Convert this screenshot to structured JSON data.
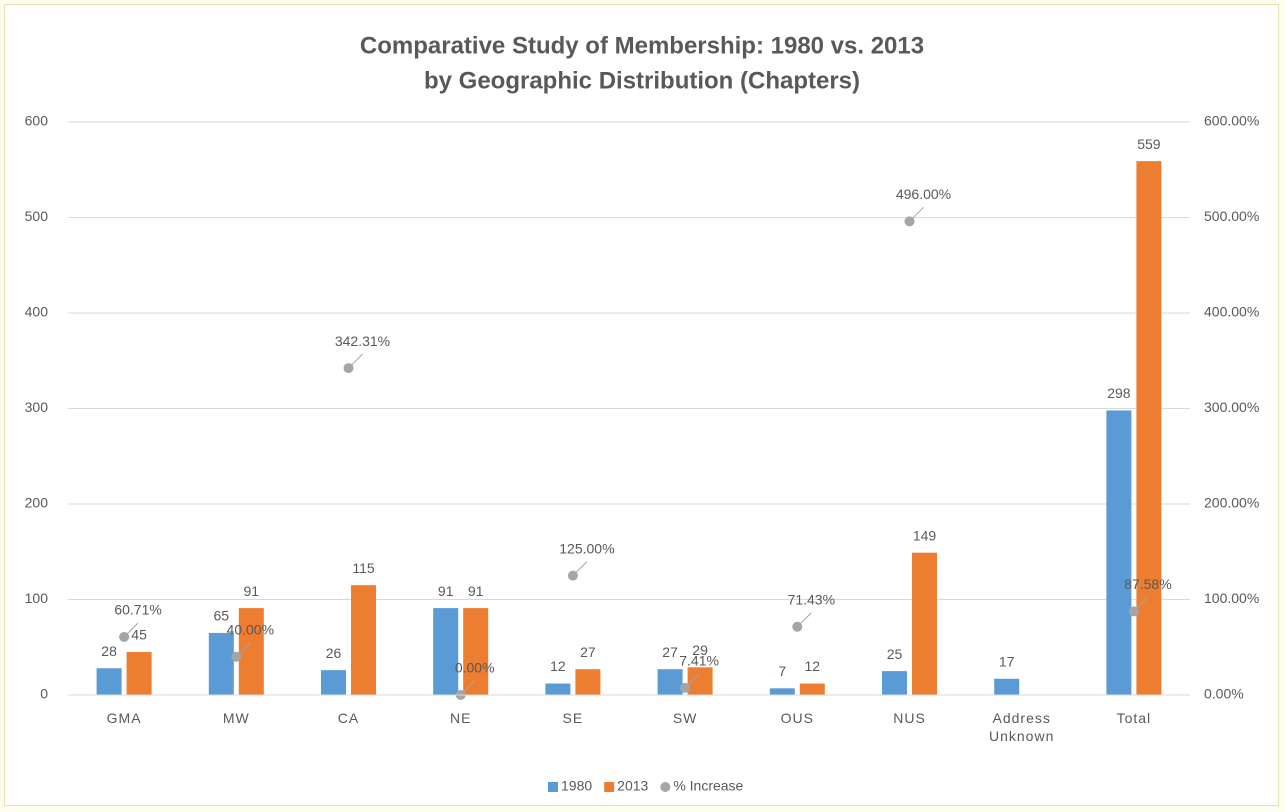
{
  "chart_data": {
    "type": "bar",
    "title": "Comparative Study of Membership: 1980 vs. 2013",
    "subtitle": "by Geographic Distribution (Chapters)",
    "categories": [
      "GMA",
      "MW",
      "CA",
      "NE",
      "SE",
      "SW",
      "OUS",
      "NUS",
      "Address Unknown",
      "Total"
    ],
    "series": [
      {
        "name": "1980",
        "type": "bar",
        "color": "#5b9bd5",
        "values": [
          28,
          65,
          26,
          91,
          12,
          27,
          7,
          25,
          17,
          298
        ]
      },
      {
        "name": "2013",
        "type": "bar",
        "color": "#ed7d31",
        "values": [
          45,
          91,
          115,
          91,
          27,
          29,
          12,
          149,
          null,
          559
        ]
      },
      {
        "name": "% Increase",
        "type": "scatter",
        "axis": "y2",
        "color": "#a5a5a5",
        "values": [
          60.71,
          40.0,
          342.31,
          0.0,
          125.0,
          7.41,
          71.43,
          496.0,
          null,
          87.58
        ],
        "value_labels": [
          "60.71%",
          "40.00%",
          "342.31%",
          "0.00%",
          "125.00%",
          "7.41%",
          "71.43%",
          "496.00%",
          null,
          "87.58%"
        ]
      }
    ],
    "ylim": [
      0,
      600
    ],
    "yticks": [
      0,
      100,
      200,
      300,
      400,
      500,
      600
    ],
    "y2lim": [
      0,
      600
    ],
    "y2ticks": [
      {
        "value": 0,
        "label": "0.00%"
      },
      {
        "value": 100,
        "label": "100.00%"
      },
      {
        "value": 200,
        "label": "200.00%"
      },
      {
        "value": 300,
        "label": "300.00%"
      },
      {
        "value": 400,
        "label": "400.00%"
      },
      {
        "value": 500,
        "label": "500.00%"
      },
      {
        "value": 600,
        "label": "600.00%"
      }
    ],
    "grid": true,
    "legend": "bottom"
  }
}
